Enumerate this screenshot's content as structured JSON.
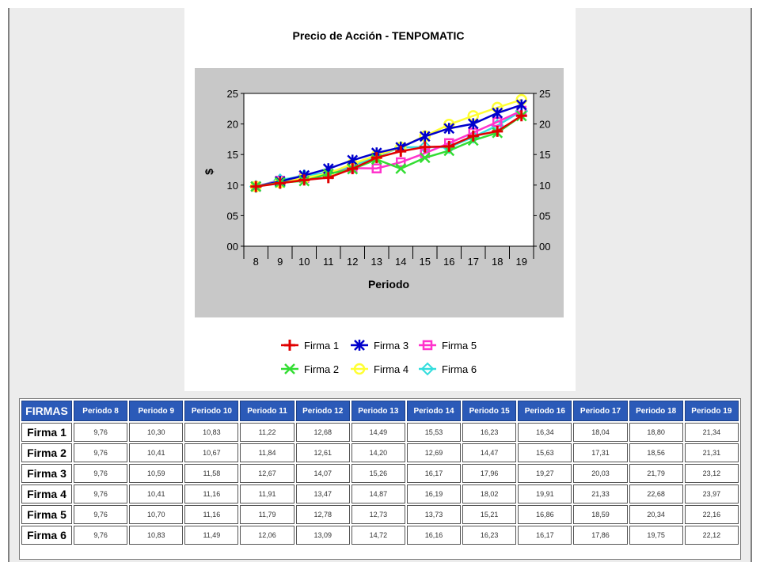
{
  "colors": {
    "plot_bg": "#c8c8c8",
    "header_bg": "#2b5ab8",
    "series": [
      "#e00000",
      "#33dd33",
      "#0000cc",
      "#ffff33",
      "#ff33cc",
      "#33dddd"
    ]
  },
  "chart_data": {
    "type": "line",
    "title": "Precio de Acción - TENPOMATIC",
    "xlabel": "Periodo",
    "ylabel": "$",
    "x": [
      8,
      9,
      10,
      11,
      12,
      13,
      14,
      15,
      16,
      17,
      18,
      19
    ],
    "ylim": [
      0,
      25
    ],
    "yticks": [
      "00",
      "05",
      "10",
      "15",
      "20",
      "25"
    ],
    "ytick_values": [
      0,
      5,
      10,
      15,
      20,
      25
    ],
    "right_axis": true,
    "legend_position": "bottom",
    "series": [
      {
        "name": "Firma 1",
        "marker": "plus",
        "values": [
          9.76,
          10.3,
          10.83,
          11.22,
          12.68,
          14.49,
          15.53,
          16.23,
          16.34,
          18.04,
          18.8,
          21.34
        ]
      },
      {
        "name": "Firma 2",
        "marker": "x",
        "values": [
          9.76,
          10.41,
          10.67,
          11.84,
          12.61,
          14.2,
          12.69,
          14.47,
          15.63,
          17.31,
          18.56,
          21.31
        ]
      },
      {
        "name": "Firma 3",
        "marker": "star",
        "values": [
          9.76,
          10.59,
          11.58,
          12.67,
          14.07,
          15.26,
          16.17,
          17.96,
          19.27,
          20.03,
          21.79,
          23.12
        ]
      },
      {
        "name": "Firma 4",
        "marker": "circle",
        "values": [
          9.76,
          10.41,
          11.16,
          11.91,
          13.47,
          14.87,
          16.19,
          18.02,
          19.91,
          21.33,
          22.68,
          23.97
        ]
      },
      {
        "name": "Firma 5",
        "marker": "square",
        "values": [
          9.76,
          10.7,
          11.16,
          11.79,
          12.78,
          12.73,
          13.73,
          15.21,
          16.86,
          18.59,
          20.34,
          22.16
        ]
      },
      {
        "name": "Firma 6",
        "marker": "diamond",
        "values": [
          9.76,
          10.83,
          11.49,
          12.06,
          13.09,
          14.72,
          16.16,
          16.23,
          16.17,
          17.86,
          19.75,
          22.12
        ]
      }
    ]
  },
  "table": {
    "header_first": "FIRMAS",
    "headers": [
      "Periodo 8",
      "Periodo 9",
      "Periodo 10",
      "Periodo 11",
      "Periodo 12",
      "Periodo 13",
      "Periodo 14",
      "Periodo 15",
      "Periodo 16",
      "Periodo 17",
      "Periodo 18",
      "Periodo 19"
    ],
    "rows": [
      {
        "label": "Firma 1",
        "cells": [
          "9,76",
          "10,30",
          "10,83",
          "11,22",
          "12,68",
          "14,49",
          "15,53",
          "16,23",
          "16,34",
          "18,04",
          "18,80",
          "21,34"
        ]
      },
      {
        "label": "Firma 2",
        "cells": [
          "9,76",
          "10,41",
          "10,67",
          "11,84",
          "12,61",
          "14,20",
          "12,69",
          "14,47",
          "15,63",
          "17,31",
          "18,56",
          "21,31"
        ]
      },
      {
        "label": "Firma 3",
        "cells": [
          "9,76",
          "10,59",
          "11,58",
          "12,67",
          "14,07",
          "15,26",
          "16,17",
          "17,96",
          "19,27",
          "20,03",
          "21,79",
          "23,12"
        ]
      },
      {
        "label": "Firma 4",
        "cells": [
          "9,76",
          "10,41",
          "11,16",
          "11,91",
          "13,47",
          "14,87",
          "16,19",
          "18,02",
          "19,91",
          "21,33",
          "22,68",
          "23,97"
        ]
      },
      {
        "label": "Firma 5",
        "cells": [
          "9,76",
          "10,70",
          "11,16",
          "11,79",
          "12,78",
          "12,73",
          "13,73",
          "15,21",
          "16,86",
          "18,59",
          "20,34",
          "22,16"
        ]
      },
      {
        "label": "Firma 6",
        "cells": [
          "9,76",
          "10,83",
          "11,49",
          "12,06",
          "13,09",
          "14,72",
          "16,16",
          "16,23",
          "16,17",
          "17,86",
          "19,75",
          "22,12"
        ]
      }
    ]
  }
}
